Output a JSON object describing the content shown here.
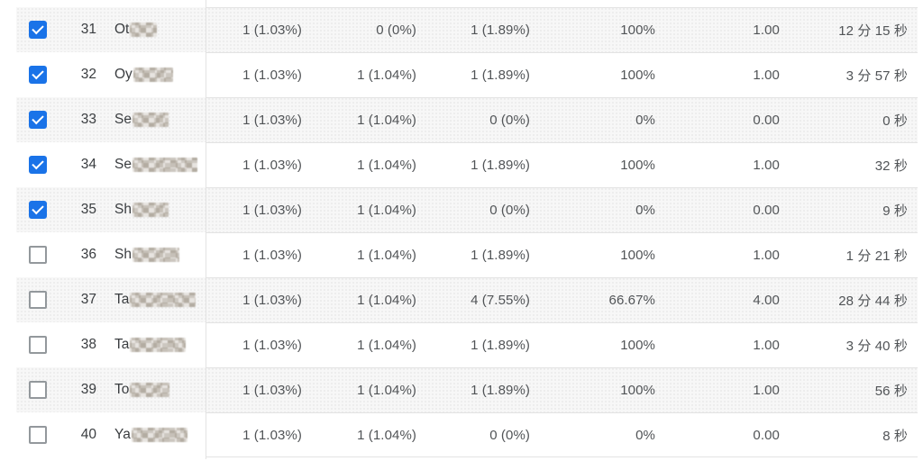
{
  "table": {
    "colors": {
      "checkbox_checked": "#1a73e8",
      "row_stripe": "#f7f7f7",
      "border": "#e3e3e3",
      "value_text": "#515457",
      "label_text": "#3a3d40"
    },
    "rows": [
      {
        "rank": "31",
        "checked": true,
        "name_prefix": "Ot",
        "name_censored": true,
        "blur_width": 30,
        "values": [
          "1 (1.03%)",
          "0 (0%)",
          "1 (1.89%)",
          "100%",
          "1.00",
          "12 分 15 秒"
        ]
      },
      {
        "rank": "32",
        "checked": true,
        "name_prefix": "Oy",
        "name_censored": true,
        "blur_width": 44,
        "values": [
          "1 (1.03%)",
          "1 (1.04%)",
          "1 (1.89%)",
          "100%",
          "1.00",
          "3 分 57 秒"
        ]
      },
      {
        "rank": "33",
        "checked": true,
        "name_prefix": "Se",
        "name_censored": true,
        "blur_width": 40,
        "values": [
          "1 (1.03%)",
          "1 (1.04%)",
          "0 (0%)",
          "0%",
          "0.00",
          "0 秒"
        ]
      },
      {
        "rank": "34",
        "checked": true,
        "name_prefix": "Se",
        "name_censored": true,
        "blur_width": 72,
        "values": [
          "1 (1.03%)",
          "1 (1.04%)",
          "1 (1.89%)",
          "100%",
          "1.00",
          "32 秒"
        ]
      },
      {
        "rank": "35",
        "checked": true,
        "name_prefix": "Sh",
        "name_censored": true,
        "blur_width": 40,
        "values": [
          "1 (1.03%)",
          "1 (1.04%)",
          "0 (0%)",
          "0%",
          "0.00",
          "9 秒"
        ]
      },
      {
        "rank": "36",
        "checked": false,
        "name_prefix": "Sh",
        "name_censored": true,
        "blur_width": 52,
        "values": [
          "1 (1.03%)",
          "1 (1.04%)",
          "1 (1.89%)",
          "100%",
          "1.00",
          "1 分 21 秒"
        ]
      },
      {
        "rank": "37",
        "checked": false,
        "name_prefix": "Ta",
        "name_censored": true,
        "blur_width": 73,
        "values": [
          "1 (1.03%)",
          "1 (1.04%)",
          "4 (7.55%)",
          "66.67%",
          "4.00",
          "28 分 44 秒"
        ]
      },
      {
        "rank": "38",
        "checked": false,
        "name_prefix": "Ta",
        "name_censored": true,
        "blur_width": 62,
        "values": [
          "1 (1.03%)",
          "1 (1.04%)",
          "1 (1.89%)",
          "100%",
          "1.00",
          "3 分 40 秒"
        ]
      },
      {
        "rank": "39",
        "checked": false,
        "name_prefix": "To",
        "name_censored": true,
        "blur_width": 44,
        "values": [
          "1 (1.03%)",
          "1 (1.04%)",
          "1 (1.89%)",
          "100%",
          "1.00",
          "56 秒"
        ]
      },
      {
        "rank": "40",
        "checked": false,
        "name_prefix": "Ya",
        "name_censored": true,
        "blur_width": 62,
        "values": [
          "1 (1.03%)",
          "1 (1.04%)",
          "0 (0%)",
          "0%",
          "0.00",
          "8 秒"
        ]
      }
    ]
  }
}
